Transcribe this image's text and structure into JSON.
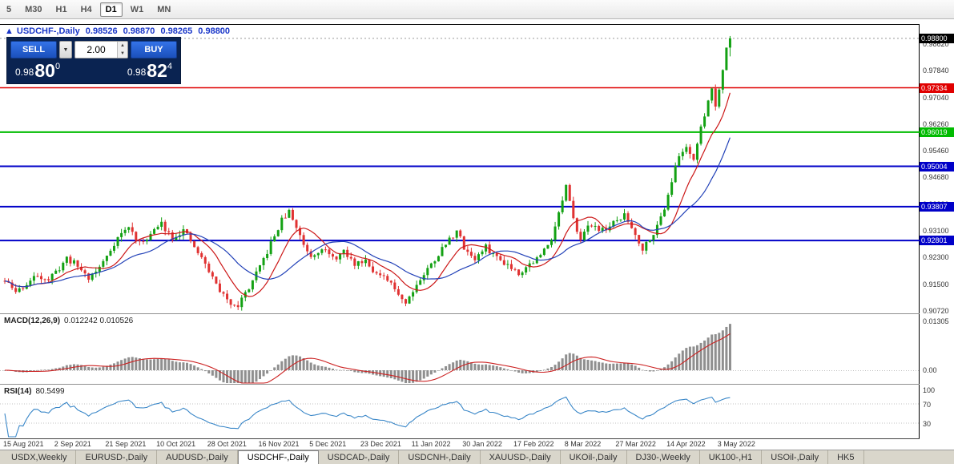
{
  "toolbar": {
    "timeframes": [
      {
        "label": "5",
        "active": false
      },
      {
        "label": "M30",
        "active": false
      },
      {
        "label": "H1",
        "active": false
      },
      {
        "label": "H4",
        "active": false
      },
      {
        "label": "D1",
        "active": true
      },
      {
        "label": "W1",
        "active": false
      },
      {
        "label": "MN",
        "active": false
      }
    ]
  },
  "chart": {
    "header": {
      "marker": "▲",
      "symbol": "USDCHF-,Daily",
      "open": "0.98526",
      "high": "0.98870",
      "low": "0.98265",
      "close": "0.98800"
    },
    "axis": {
      "current_price": "0.98800",
      "ticks": [
        "0.98620",
        "0.97840",
        "0.97040",
        "0.96260",
        "0.95460",
        "0.94680",
        "0.93880",
        "0.93100",
        "0.92300",
        "0.91500",
        "0.90720"
      ]
    },
    "levels": [
      {
        "price": 0.97334,
        "label": "0.97334",
        "color": "#e00000",
        "width": 1.5
      },
      {
        "price": 0.96019,
        "label": "0.96019",
        "color": "#00bb00",
        "width": 2
      },
      {
        "price": 0.95004,
        "label": "0.95004",
        "color": "#0000c8",
        "width": 2
      },
      {
        "price": 0.93807,
        "label": "0.93807",
        "color": "#0000c8",
        "width": 2
      },
      {
        "price": 0.92801,
        "label": "0.92801",
        "color": "#0000c8",
        "width": 2
      }
    ],
    "dates": [
      "15 Aug 2021",
      "2 Sep 2021",
      "21 Sep 2021",
      "10 Oct 2021",
      "28 Oct 2021",
      "16 Nov 2021",
      "5 Dec 2021",
      "23 Dec 2021",
      "11 Jan 2022",
      "30 Jan 2022",
      "17 Feb 2022",
      "8 Mar 2022",
      "27 Mar 2022",
      "14 Apr 2022",
      "3 May 2022"
    ]
  },
  "trade_panel": {
    "sell_label": "SELL",
    "buy_label": "BUY",
    "lot": "2.00",
    "sell_price": {
      "prefix": "0.98",
      "big": "80",
      "sup": "0"
    },
    "buy_price": {
      "prefix": "0.98",
      "big": "82",
      "sup": "4"
    }
  },
  "macd": {
    "label": "MACD(12,26,9)",
    "values": "0.012242 0.010526",
    "axis_top": "0.01305",
    "axis_zero": "0.00"
  },
  "rsi": {
    "label": "RSI(14)",
    "value": "80.5499",
    "axis": [
      "100",
      "70",
      "30"
    ]
  },
  "tabs": [
    {
      "label": "USDX,Weekly",
      "active": false
    },
    {
      "label": "EURUSD-,Daily",
      "active": false
    },
    {
      "label": "AUDUSD-,Daily",
      "active": false
    },
    {
      "label": "USDCHF-,Daily",
      "active": true
    },
    {
      "label": "USDCAD-,Daily",
      "active": false
    },
    {
      "label": "USDCNH-,Daily",
      "active": false
    },
    {
      "label": "XAUUSD-,Daily",
      "active": false
    },
    {
      "label": "UKOil-,Daily",
      "active": false
    },
    {
      "label": "DJ30-,Weekly",
      "active": false
    },
    {
      "label": "UK100-,H1",
      "active": false
    },
    {
      "label": "USOil-,Daily",
      "active": false
    },
    {
      "label": "HK5",
      "active": false
    }
  ],
  "chart_data": {
    "type": "candlestick",
    "symbol": "USDCHF",
    "timeframe": "Daily",
    "bars": 200,
    "price_range": [
      0.9066,
      0.9923
    ],
    "seed": 11,
    "noise": 0.0018,
    "wick": 0.0014,
    "last": {
      "open": 0.98526,
      "high": 0.9887,
      "low": 0.98265,
      "close": 0.988
    },
    "anchors": [
      [
        0,
        0.916
      ],
      [
        3,
        0.9128
      ],
      [
        6,
        0.915
      ],
      [
        9,
        0.9178
      ],
      [
        12,
        0.9165
      ],
      [
        14,
        0.9185
      ],
      [
        17,
        0.9228
      ],
      [
        20,
        0.9205
      ],
      [
        23,
        0.917
      ],
      [
        26,
        0.92
      ],
      [
        28,
        0.9235
      ],
      [
        31,
        0.929
      ],
      [
        34,
        0.932
      ],
      [
        37,
        0.927
      ],
      [
        40,
        0.93
      ],
      [
        43,
        0.933
      ],
      [
        46,
        0.929
      ],
      [
        49,
        0.931
      ],
      [
        52,
        0.926
      ],
      [
        55,
        0.921
      ],
      [
        58,
        0.915
      ],
      [
        61,
        0.91
      ],
      [
        64,
        0.909
      ],
      [
        67,
        0.914
      ],
      [
        70,
        0.92
      ],
      [
        73,
        0.927
      ],
      [
        76,
        0.934
      ],
      [
        78,
        0.9365
      ],
      [
        80,
        0.932
      ],
      [
        82,
        0.927
      ],
      [
        84,
        0.9235
      ],
      [
        87,
        0.926
      ],
      [
        90,
        0.9225
      ],
      [
        93,
        0.9245
      ],
      [
        96,
        0.921
      ],
      [
        99,
        0.9225
      ],
      [
        102,
        0.918
      ],
      [
        105,
        0.916
      ],
      [
        108,
        0.9125
      ],
      [
        110,
        0.9095
      ],
      [
        112,
        0.9135
      ],
      [
        115,
        0.918
      ],
      [
        118,
        0.9225
      ],
      [
        121,
        0.927
      ],
      [
        124,
        0.931
      ],
      [
        126,
        0.926
      ],
      [
        129,
        0.9225
      ],
      [
        132,
        0.926
      ],
      [
        135,
        0.923
      ],
      [
        138,
        0.921
      ],
      [
        141,
        0.9185
      ],
      [
        144,
        0.921
      ],
      [
        147,
        0.9235
      ],
      [
        150,
        0.929
      ],
      [
        152,
        0.936
      ],
      [
        154,
        0.944
      ],
      [
        156,
        0.934
      ],
      [
        158,
        0.929
      ],
      [
        161,
        0.933
      ],
      [
        164,
        0.931
      ],
      [
        167,
        0.933
      ],
      [
        170,
        0.9355
      ],
      [
        173,
        0.93
      ],
      [
        175,
        0.9255
      ],
      [
        177,
        0.929
      ],
      [
        179,
        0.932
      ],
      [
        181,
        0.938
      ],
      [
        183,
        0.946
      ],
      [
        185,
        0.953
      ],
      [
        187,
        0.956
      ],
      [
        189,
        0.9525
      ],
      [
        191,
        0.961
      ],
      [
        193,
        0.97
      ],
      [
        194,
        0.973
      ],
      [
        195,
        0.968
      ],
      [
        196,
        0.9735
      ],
      [
        197,
        0.979
      ],
      [
        198,
        0.9833
      ],
      [
        199,
        0.988
      ]
    ],
    "overlays": [
      {
        "name": "ma-fast",
        "period": 10,
        "color": "#cc1818"
      },
      {
        "name": "ma-slow",
        "period": 21,
        "color": "#2342b8"
      }
    ],
    "indicators": [
      {
        "name": "MACD",
        "params": [
          12,
          26,
          9
        ],
        "values": [
          0.012242,
          0.010526
        ],
        "hist_color": "#8f8f8f",
        "signal_color": "#cc2222"
      },
      {
        "name": "RSI",
        "params": [
          14
        ],
        "value": 80.5499,
        "levels": [
          70,
          30
        ],
        "color": "#3a87c8"
      }
    ],
    "colors": {
      "up": "#13a113",
      "down": "#e03232",
      "grid": "#c0c0c0",
      "frame": "#000000",
      "separator": "#909090",
      "current_badge": "#000000"
    }
  }
}
